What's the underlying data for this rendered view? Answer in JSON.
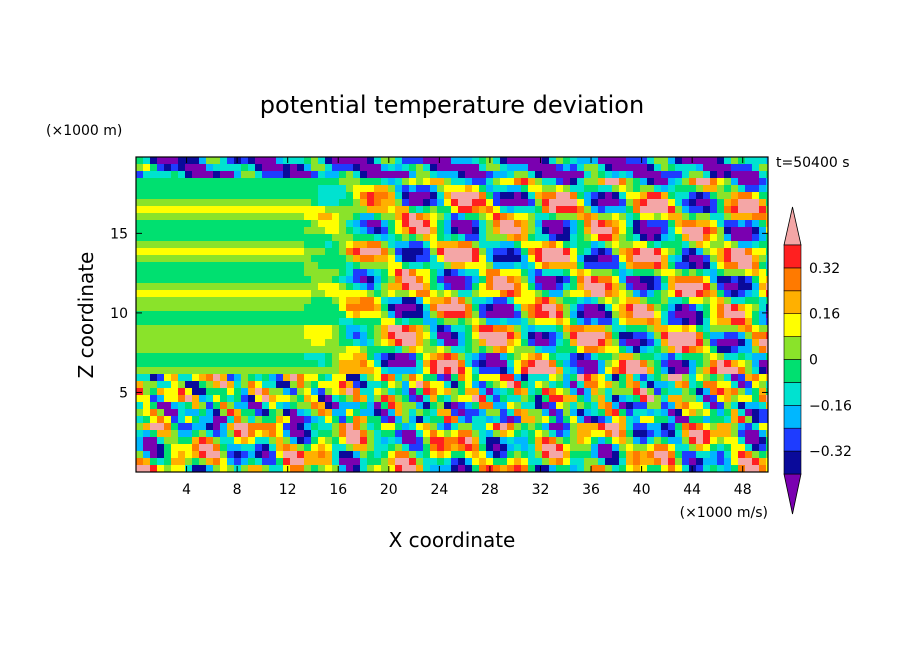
{
  "chart_data": {
    "type": "heatmap",
    "title": "potential temperature deviation",
    "time_label": "t=50400 s",
    "xlabel": "X coordinate",
    "ylabel": "Z coordinate",
    "x_unit": "(×1000 m/s)",
    "y_unit": "(×1000 m)",
    "xlim": [
      0,
      50
    ],
    "ylim": [
      0,
      19.8
    ],
    "x_ticks": [
      4,
      8,
      12,
      16,
      20,
      24,
      28,
      32,
      36,
      40,
      44,
      48
    ],
    "y_ticks": [
      5,
      10,
      15
    ],
    "colorbar": {
      "levels": [
        -0.48,
        -0.4,
        -0.32,
        -0.24,
        -0.16,
        -0.08,
        0,
        0.08,
        0.16,
        0.24,
        0.32,
        0.4,
        0.48
      ],
      "tick_labels": [
        "0.32",
        "0.16",
        "0",
        "−0.16",
        "−0.32"
      ],
      "tick_values": [
        0.32,
        0.16,
        0,
        -0.16,
        -0.32
      ],
      "colors": [
        "#7a00b0",
        "#0a0a9a",
        "#1e3cff",
        "#00b7ff",
        "#00e2d0",
        "#00e070",
        "#8ae32a",
        "#ffff00",
        "#ffb000",
        "#ff7a00",
        "#ff2020",
        "#f4a6a6"
      ],
      "extend": "both"
    },
    "description_bands": [
      {
        "z_range": [
          0,
          3
        ],
        "pattern": "strong alternating warm/cold cells near surface"
      },
      {
        "z_range": [
          3,
          6
        ],
        "pattern": "mixed layer with strong negative and positive anomalies"
      },
      {
        "z_range": [
          6,
          18
        ],
        "pattern": "near-zero background with diagonal wave bands from x≈14 to x≈48"
      },
      {
        "z_range": [
          18,
          19.8
        ],
        "pattern": "negative anomalies near top boundary"
      }
    ]
  }
}
